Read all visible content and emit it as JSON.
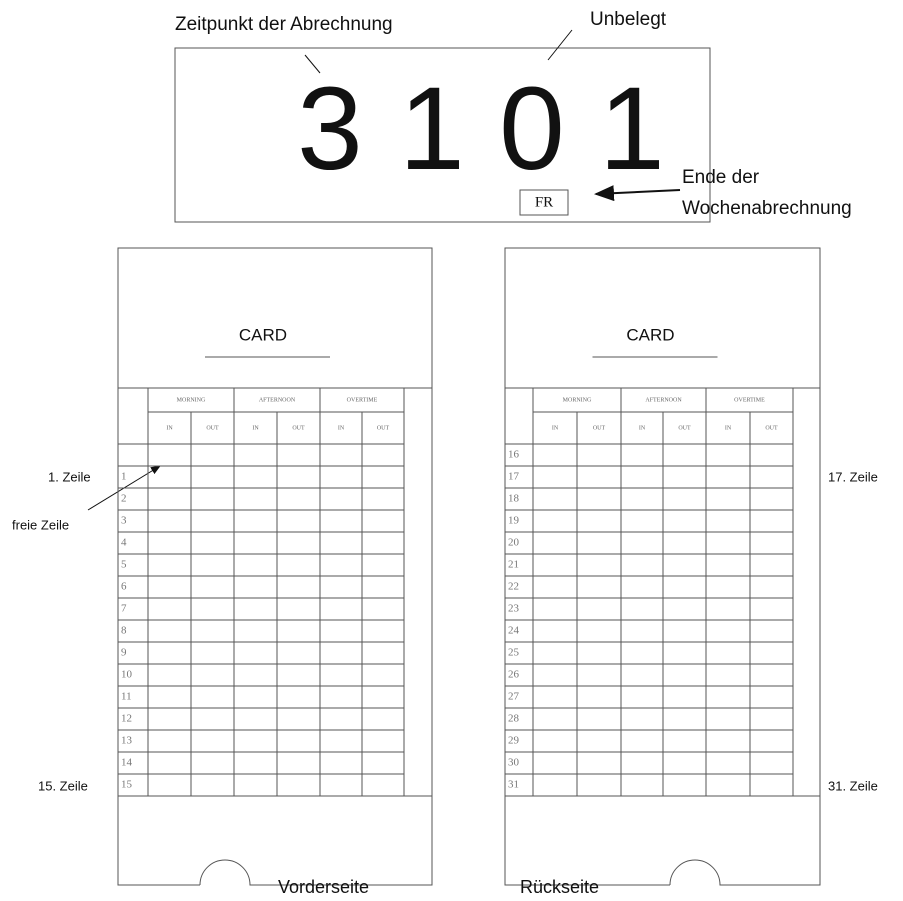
{
  "display": {
    "label_time": "Zeitpunkt der Abrechnung",
    "label_unused": "Unbelegt",
    "digits": [
      "3",
      "1",
      "0",
      "1"
    ],
    "day": "FR",
    "label_week_end": [
      "Ende der",
      "Wochenabrechnung"
    ]
  },
  "cards": [
    {
      "title": "CARD",
      "groups": [
        "MORNING",
        "AFTERNOON",
        "OVERTIME"
      ],
      "subheaders": [
        "IN",
        "OUT",
        "IN",
        "OUT",
        "IN",
        "OUT"
      ],
      "rows": [
        null,
        1,
        2,
        3,
        4,
        5,
        6,
        7,
        8,
        9,
        10,
        11,
        12,
        13,
        14,
        15
      ],
      "caption": "Vorderseite"
    },
    {
      "title": "CARD",
      "groups": [
        "MORNING",
        "AFTERNOON",
        "OVERTIME"
      ],
      "subheaders": [
        "IN",
        "OUT",
        "IN",
        "OUT",
        "IN",
        "OUT"
      ],
      "rows": [
        16,
        17,
        18,
        19,
        20,
        21,
        22,
        23,
        24,
        25,
        26,
        27,
        28,
        29,
        30,
        31
      ],
      "caption": "Rückseite"
    }
  ],
  "annotations": [
    "1. Zeile",
    "freie Zeile",
    "15. Zeile",
    "17. Zeile",
    "31. Zeile"
  ]
}
